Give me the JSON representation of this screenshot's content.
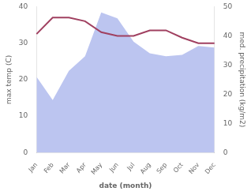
{
  "chart_data": {
    "type": "line",
    "xlabel": "date (month)",
    "ylabel": "max temp (C)",
    "y2label": "med. precipitation (kg/m2)",
    "categories": [
      "Jan",
      "Feb",
      "Mar",
      "Apr",
      "May",
      "Jun",
      "Jul",
      "Aug",
      "Sep",
      "Oct",
      "Nov",
      "Dec"
    ],
    "series": [
      {
        "type": "area",
        "axis": "y2",
        "color": "#bcc5f0",
        "values": [
          26.0,
          18.0,
          28.0,
          33.0,
          48.0,
          46.0,
          38.0,
          34.0,
          33.0,
          33.5,
          36.5,
          36.0
        ]
      },
      {
        "type": "line",
        "color": "#a04060",
        "values": [
          32.5,
          37.0,
          37.0,
          36.0,
          33.0,
          32.0,
          32.0,
          33.5,
          33.5,
          31.5,
          30.0,
          30.0
        ]
      }
    ],
    "ylim": [
      0,
      40
    ],
    "yticks": [
      0,
      10,
      20,
      30,
      40
    ],
    "y2lim": [
      0,
      50
    ],
    "y2ticks": [
      0,
      10,
      20,
      30,
      40,
      50
    ],
    "grid": false
  }
}
